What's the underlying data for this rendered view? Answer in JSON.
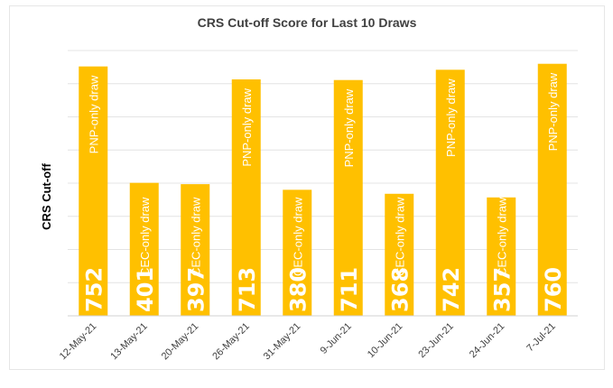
{
  "chart_data": {
    "type": "bar",
    "title": "CRS Cut-off Score for Last 10 Draws",
    "ylabel": "CRS Cut-off",
    "xlabel": "",
    "categories": [
      "12-May-21",
      "13-May-21",
      "20-May-21",
      "26-May-21",
      "31-May-21",
      "9-Jun-21",
      "10-Jun-21",
      "23-Jun-21",
      "24-Jun-21",
      "7-Jul-21"
    ],
    "values": [
      752,
      401,
      397,
      713,
      380,
      711,
      368,
      742,
      357,
      760
    ],
    "bar_notes": [
      "PNP-only draw",
      "CEC-only draw",
      "CEC-only draw",
      "PNP-only draw",
      "CEC-only draw",
      "PNP-only draw",
      "CEC-only draw",
      "PNP-only draw",
      "CEC-only draw",
      "PNP-only draw"
    ],
    "ylim": [
      0,
      800
    ],
    "grid": true,
    "legend": "none",
    "bar_color": "#FFC000"
  }
}
